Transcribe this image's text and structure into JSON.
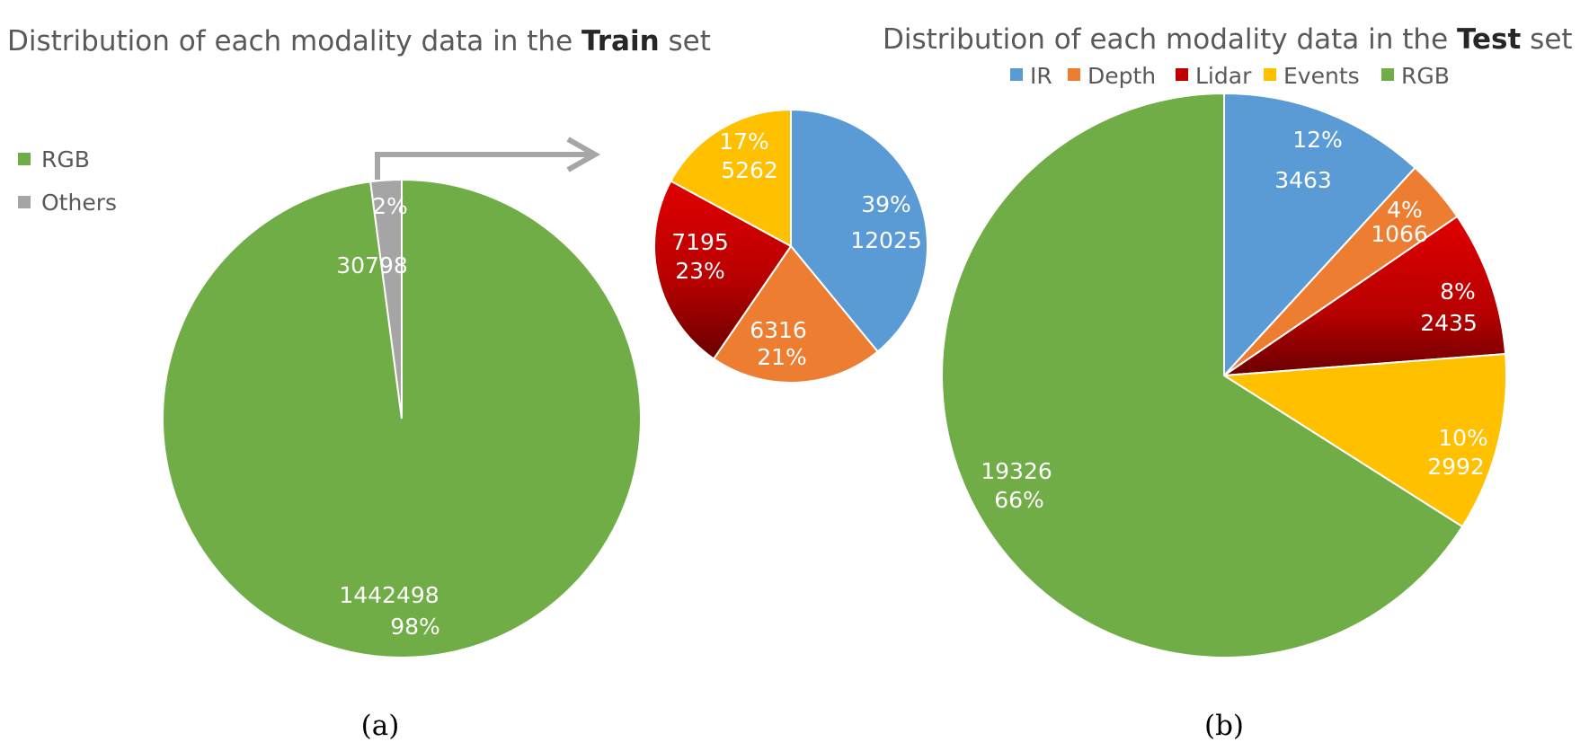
{
  "chart_data": [
    {
      "type": "pie",
      "title_prefix": "Distribution of each modality data in the ",
      "title_bold": "Train",
      "title_suffix": " set",
      "legend_placement": "left",
      "panel_label": "(a)",
      "slices": [
        {
          "label": "RGB",
          "value": 1442498,
          "percent": "98%",
          "color": "#70AD47"
        },
        {
          "label": "Others",
          "value": 30798,
          "percent": "2%",
          "color": "#A5A5A5"
        }
      ]
    },
    {
      "type": "pie",
      "title": "",
      "breakdown_of": "Others",
      "slices": [
        {
          "value": 12025,
          "percent": "39%",
          "color": "#5B9BD5"
        },
        {
          "value": 6316,
          "percent": "21%",
          "color": "#ED7D31"
        },
        {
          "value": 7195,
          "percent": "23%",
          "color": "#C00000"
        },
        {
          "value": 5262,
          "percent": "17%",
          "color": "#FFC000"
        }
      ]
    },
    {
      "type": "pie",
      "title_prefix": "Distribution of each modality data in the ",
      "title_bold": "Test",
      "title_suffix": " set",
      "legend_placement": "top",
      "panel_label": "(b)",
      "slices": [
        {
          "label": "IR",
          "value": 3463,
          "percent": "12%",
          "color": "#5B9BD5"
        },
        {
          "label": "Depth",
          "value": 1066,
          "percent": "4%",
          "color": "#ED7D31"
        },
        {
          "label": "Lidar",
          "value": 2435,
          "percent": "8%",
          "color": "#C00000"
        },
        {
          "label": "Events",
          "value": 2992,
          "percent": "10%",
          "color": "#FFC000"
        },
        {
          "label": "RGB",
          "value": 19326,
          "percent": "66%",
          "color": "#70AD47"
        }
      ]
    }
  ]
}
